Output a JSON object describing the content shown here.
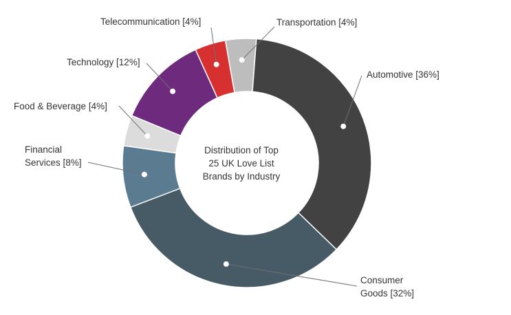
{
  "chart_data": {
    "type": "pie",
    "donut": true,
    "center_title_lines": [
      "Distribution of Top",
      "25 UK Love List",
      "Brands by Industry"
    ],
    "slices": [
      {
        "name": "Transportation",
        "value": 4,
        "color": "#bdbdbd",
        "label_lines": [
          "Transportation [4%]"
        ]
      },
      {
        "name": "Automotive",
        "value": 36,
        "color": "#424242",
        "label_lines": [
          "Automotive [36%]"
        ]
      },
      {
        "name": "Consumer Goods",
        "value": 32,
        "color": "#475b66",
        "label_lines": [
          "Consumer",
          "Goods [32%]"
        ]
      },
      {
        "name": "Financial Services",
        "value": 8,
        "color": "#5b7c90",
        "label_lines": [
          "Financial",
          "Services [8%]"
        ]
      },
      {
        "name": "Food & Beverage",
        "value": 4,
        "color": "#dcdcdc",
        "label_lines": [
          "Food & Beverage [4%]"
        ]
      },
      {
        "name": "Technology",
        "value": 12,
        "color": "#6e2a7d",
        "label_lines": [
          "Technology [12%]"
        ]
      },
      {
        "name": "Telecommunication",
        "value": 4,
        "color": "#d63030",
        "label_lines": [
          "Telecommunication [4%]"
        ]
      }
    ],
    "legend": "none",
    "labels_placement": "outside with leader lines"
  }
}
